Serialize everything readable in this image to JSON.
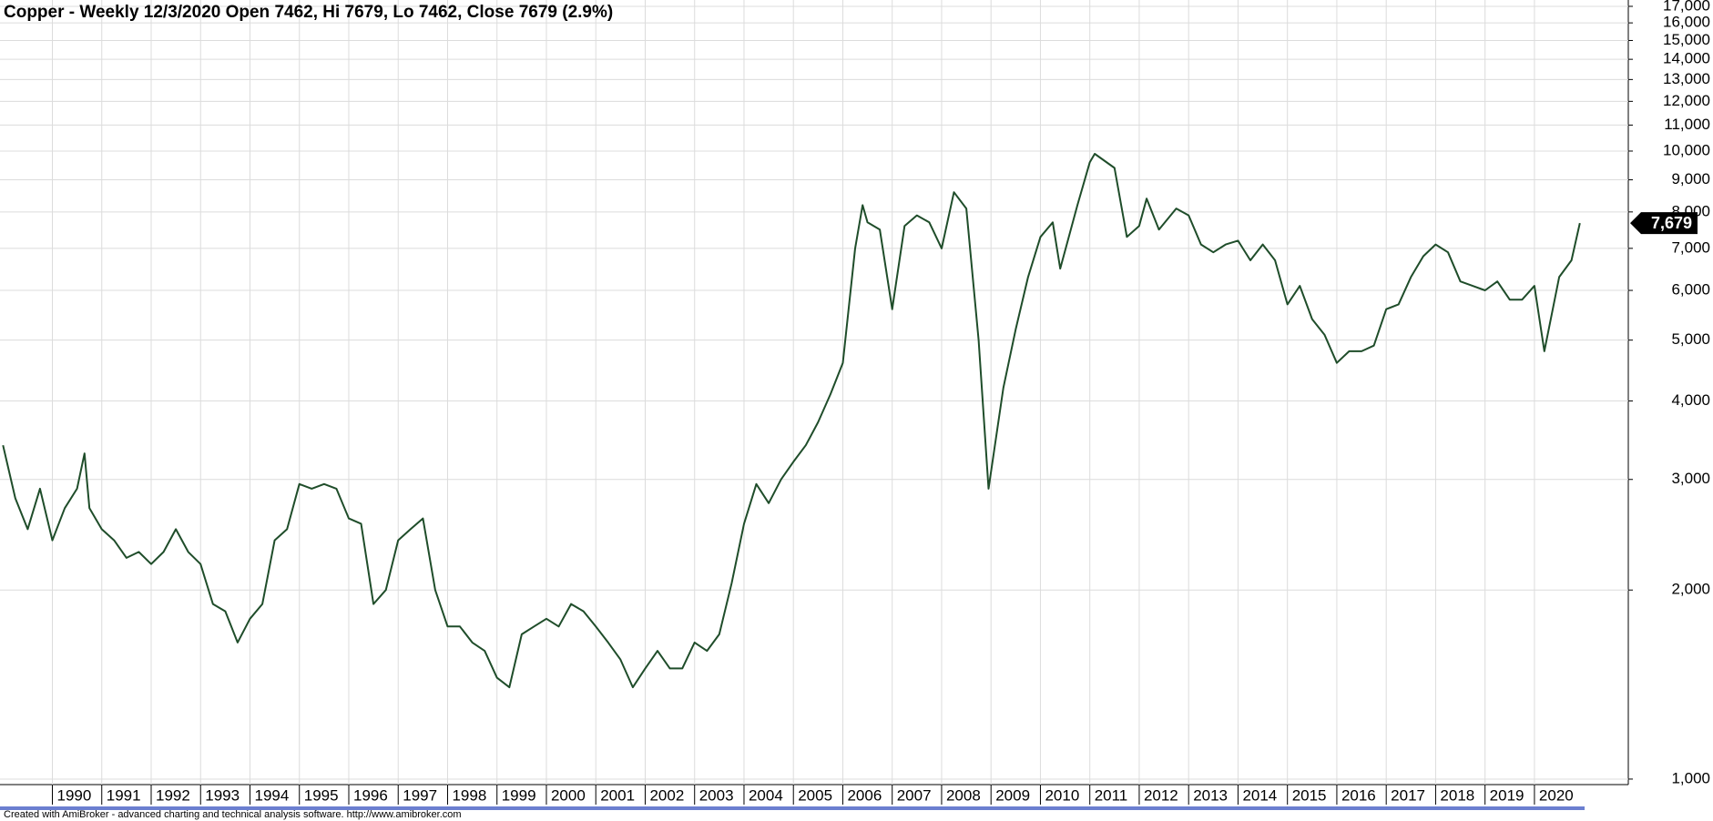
{
  "chart_data": {
    "type": "line",
    "title": "Copper - Weekly 12/3/2020 Open 7462, Hi 7679, Lo 7462, Close 7679 (2.9%)",
    "footer": "Created with AmiBroker - advanced charting and technical analysis software. http://www.amibroker.com",
    "color": "#1f4d2a",
    "log_scale": true,
    "grid": true,
    "x": [
      1989.0,
      1989.25,
      1989.5,
      1989.75,
      1990.0,
      1990.25,
      1990.5,
      1990.65,
      1990.75,
      1991.0,
      1991.25,
      1991.5,
      1991.75,
      1992.0,
      1992.25,
      1992.5,
      1992.75,
      1993.0,
      1993.25,
      1993.5,
      1993.75,
      1994.0,
      1994.25,
      1994.5,
      1994.75,
      1995.0,
      1995.25,
      1995.5,
      1995.75,
      1996.0,
      1996.25,
      1996.5,
      1996.75,
      1997.0,
      1997.25,
      1997.5,
      1997.75,
      1998.0,
      1998.25,
      1998.5,
      1998.75,
      1999.0,
      1999.25,
      1999.5,
      1999.75,
      2000.0,
      2000.25,
      2000.5,
      2000.75,
      2001.0,
      2001.25,
      2001.5,
      2001.75,
      2002.0,
      2002.25,
      2002.5,
      2002.75,
      2003.0,
      2003.25,
      2003.5,
      2003.75,
      2004.0,
      2004.25,
      2004.5,
      2004.75,
      2005.0,
      2005.25,
      2005.5,
      2005.75,
      2006.0,
      2006.25,
      2006.4,
      2006.5,
      2006.75,
      2007.0,
      2007.25,
      2007.5,
      2007.75,
      2008.0,
      2008.25,
      2008.5,
      2008.75,
      2008.95,
      2009.25,
      2009.5,
      2009.75,
      2010.0,
      2010.25,
      2010.4,
      2010.75,
      2011.0,
      2011.1,
      2011.5,
      2011.75,
      2012.0,
      2012.15,
      2012.4,
      2012.75,
      2013.0,
      2013.25,
      2013.5,
      2013.75,
      2014.0,
      2014.25,
      2014.5,
      2014.75,
      2015.0,
      2015.25,
      2015.5,
      2015.75,
      2016.0,
      2016.25,
      2016.5,
      2016.75,
      2017.0,
      2017.25,
      2017.5,
      2017.75,
      2018.0,
      2018.25,
      2018.5,
      2018.75,
      2019.0,
      2019.25,
      2019.5,
      2019.75,
      2020.0,
      2020.2,
      2020.5,
      2020.75,
      2020.92
    ],
    "values": [
      3400,
      2800,
      2500,
      2900,
      2400,
      2700,
      2900,
      3300,
      2700,
      2500,
      2400,
      2250,
      2300,
      2200,
      2300,
      2500,
      2300,
      2200,
      1900,
      1850,
      1650,
      1800,
      1900,
      2400,
      2500,
      2950,
      2900,
      2950,
      2900,
      2600,
      2550,
      1900,
      2000,
      2400,
      2500,
      2600,
      2000,
      1750,
      1750,
      1650,
      1600,
      1450,
      1400,
      1700,
      1750,
      1800,
      1750,
      1900,
      1850,
      1750,
      1650,
      1550,
      1400,
      1500,
      1600,
      1500,
      1500,
      1650,
      1600,
      1700,
      2050,
      2550,
      2950,
      2750,
      3000,
      3200,
      3400,
      3700,
      4100,
      4600,
      7000,
      8200,
      7700,
      7500,
      5600,
      7600,
      7900,
      7700,
      7000,
      8600,
      8100,
      5000,
      2900,
      4200,
      5200,
      6300,
      7300,
      7700,
      6500,
      8200,
      9600,
      9900,
      9400,
      7300,
      7600,
      8400,
      7500,
      8100,
      7900,
      7100,
      6900,
      7100,
      7200,
      6700,
      7100,
      6700,
      5700,
      6100,
      5400,
      5100,
      4600,
      4800,
      4800,
      4900,
      5600,
      5700,
      6300,
      6800,
      7100,
      6900,
      6200,
      6100,
      6000,
      6200,
      5800,
      5800,
      6100,
      4800,
      6300,
      6700,
      7679
    ],
    "last_price": {
      "value": 7679,
      "label": "7,679"
    },
    "xlim": [
      1988.94,
      2021.9
    ],
    "xticks": [
      1990,
      1991,
      1992,
      1993,
      1994,
      1995,
      1996,
      1997,
      1998,
      1999,
      2000,
      2001,
      2002,
      2003,
      2004,
      2005,
      2006,
      2007,
      2008,
      2009,
      2010,
      2011,
      2012,
      2013,
      2014,
      2015,
      2016,
      2017,
      2018,
      2019,
      2020
    ],
    "ylim": [
      980,
      17400
    ],
    "yticks": [
      {
        "value": 1000,
        "label": "1,000"
      },
      {
        "value": 2000,
        "label": "2,000"
      },
      {
        "value": 3000,
        "label": "3,000"
      },
      {
        "value": 4000,
        "label": "4,000"
      },
      {
        "value": 5000,
        "label": "5,000"
      },
      {
        "value": 6000,
        "label": "6,000"
      },
      {
        "value": 7000,
        "label": "7,000"
      },
      {
        "value": 8000,
        "label": "8,000"
      },
      {
        "value": 9000,
        "label": "9,000"
      },
      {
        "value": 10000,
        "label": "10,000"
      },
      {
        "value": 11000,
        "label": "11,000"
      },
      {
        "value": 12000,
        "label": "12,000"
      },
      {
        "value": 13000,
        "label": "13,000"
      },
      {
        "value": 14000,
        "label": "14,000"
      },
      {
        "value": 15000,
        "label": "15,000"
      },
      {
        "value": 16000,
        "label": "16,000"
      },
      {
        "value": 17000,
        "label": "17,000"
      }
    ]
  }
}
